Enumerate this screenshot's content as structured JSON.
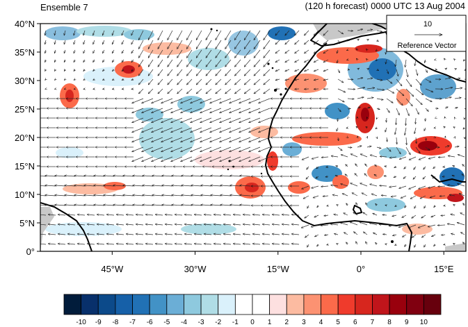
{
  "map": {
    "title_left": "Ensemble 7",
    "title_right": "(120 h forecast) 0000 UTC 13 Aug 2004",
    "lat_labels": [
      "40°N",
      "35°N",
      "30°N",
      "25°N",
      "20°N",
      "15°N",
      "10°N",
      "5°N",
      "0°"
    ],
    "lon_labels": [
      "45°W",
      "30°W",
      "15°W",
      "0°",
      "15°E"
    ],
    "extent": {
      "lon_min": -58,
      "lon_max": 19,
      "lat_min": 0,
      "lat_max": 40
    },
    "lat_ticks": [
      40,
      35,
      30,
      25,
      20,
      15,
      10,
      5,
      0
    ],
    "lon_ticks": [
      -45,
      -30,
      -15,
      0,
      15
    ],
    "reference_vector": {
      "value": "10",
      "label": "Reference Vector"
    }
  },
  "colorbar": {
    "labels": [
      "-10",
      "-9",
      "-8",
      "-7",
      "-6",
      "-5",
      "-4",
      "-3",
      "-2",
      "-1",
      "0",
      "1",
      "2",
      "3",
      "4",
      "5",
      "6",
      "7",
      "8",
      "9",
      "10"
    ],
    "colors": [
      "#011c3b",
      "#08306b",
      "#0c4a8a",
      "#1660a8",
      "#2171b5",
      "#4292c6",
      "#6baed6",
      "#8ec9de",
      "#b0dde6",
      "#daf1fb",
      "#ffffff",
      "#ffffff",
      "#fde0e0",
      "#fcbba1",
      "#fc9272",
      "#fb6a4a",
      "#ef3b2c",
      "#d7261e",
      "#c0151b",
      "#99000d",
      "#800010",
      "#67000d"
    ]
  }
}
